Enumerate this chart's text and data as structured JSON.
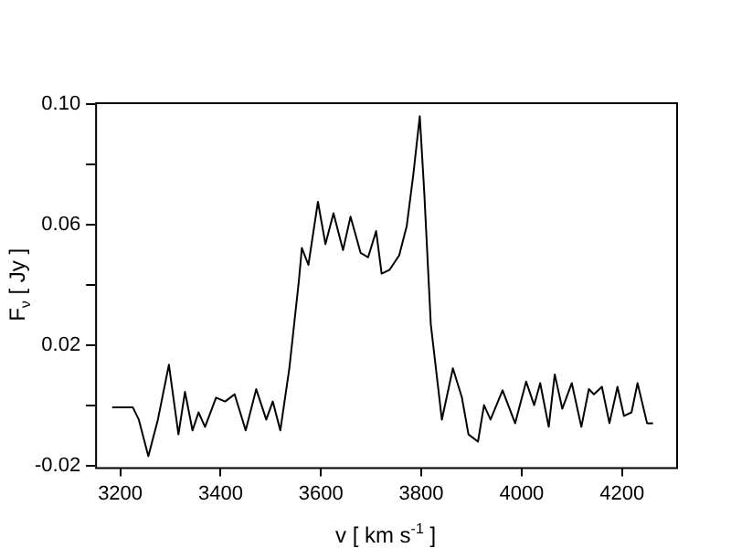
{
  "chart_data": {
    "type": "line",
    "xlabel": "v [ km s$^{-1}$ ]",
    "ylabel": "F$_{ν}$ [ Jy ]",
    "x": [
      3184,
      3225,
      3237,
      3256,
      3275,
      3297,
      3316,
      3329,
      3344,
      3356,
      3369,
      3391,
      3409,
      3428,
      3450,
      3471,
      3491,
      3504,
      3519,
      3537,
      3556,
      3562,
      3575,
      3594,
      3609,
      3625,
      3644,
      3659,
      3679,
      3694,
      3710,
      3721,
      3737,
      3756,
      3771,
      3784,
      3797,
      3806,
      3819,
      3841,
      3863,
      3881,
      3894,
      3913,
      3925,
      3938,
      3962,
      3987,
      4009,
      4025,
      4037,
      4054,
      4066,
      4081,
      4100,
      4119,
      4134,
      4144,
      4160,
      4175,
      4191,
      4204,
      4219,
      4231,
      4250,
      4262
    ],
    "series": [
      {
        "color": "#000000",
        "values": [
          -0.0006,
          -0.0006,
          -0.0047,
          -0.0168,
          -0.0047,
          0.0135,
          -0.0096,
          0.0045,
          -0.0083,
          -0.0023,
          -0.0071,
          0.0026,
          0.0013,
          0.0037,
          -0.0083,
          0.0054,
          -0.0047,
          0.0013,
          -0.0083,
          0.0123,
          0.0413,
          0.0522,
          0.0466,
          0.0675,
          0.0535,
          0.0637,
          0.0515,
          0.0626,
          0.0506,
          0.0491,
          0.0578,
          0.0437,
          0.045,
          0.0498,
          0.0595,
          0.0764,
          0.0959,
          0.0704,
          0.0268,
          -0.0047,
          0.0123,
          0.0026,
          -0.0096,
          -0.012,
          0.0001,
          -0.0047,
          0.005,
          -0.0059,
          0.0079,
          0.0001,
          0.0074,
          -0.0071,
          0.0103,
          -0.0011,
          0.0074,
          -0.0071,
          0.0054,
          0.0037,
          0.0062,
          -0.0059,
          0.0062,
          -0.0035,
          -0.0023,
          0.0074,
          -0.0059,
          -0.0059
        ]
      }
    ],
    "xlim": [
      3150,
      4308
    ],
    "xticks": [
      3200,
      3400,
      3600,
      3800,
      4000,
      4200
    ],
    "ylim": [
      -0.0205,
      0.1005
    ],
    "yticks": [
      -0.02,
      {
        "value": 0,
        "label": null
      },
      0.02,
      {
        "value": 0.04,
        "label": null
      },
      0.06,
      {
        "value": 0.08,
        "label": null
      },
      {
        "value": 0.1,
        "label": "0.10"
      }
    ],
    "grid": false,
    "legend": false,
    "marker": "none",
    "line_style": "solid"
  }
}
